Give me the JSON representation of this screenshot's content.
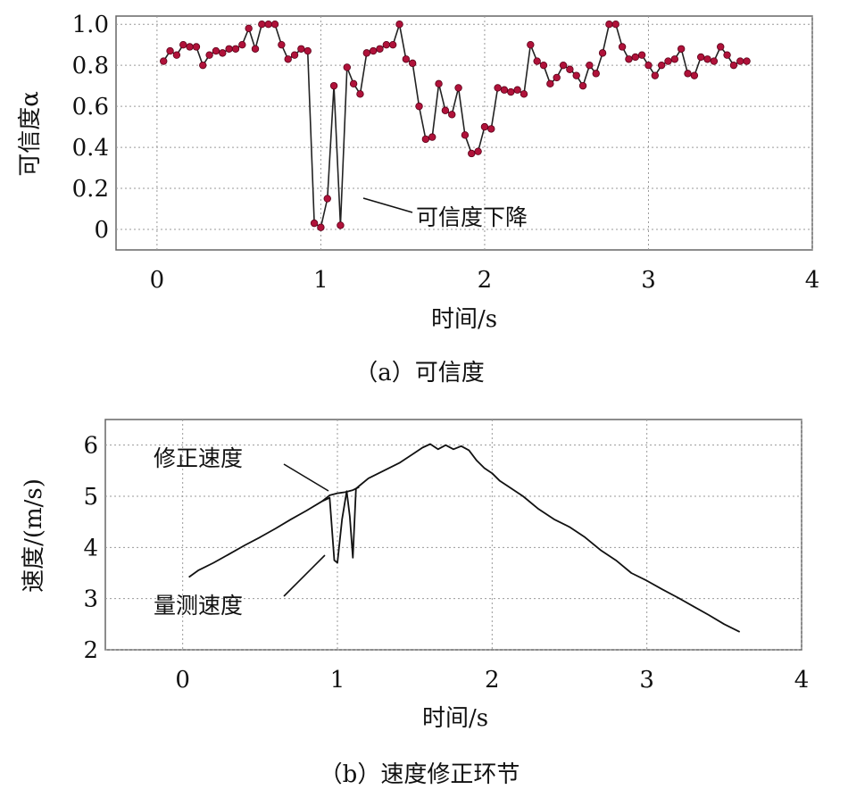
{
  "chart_data": [
    {
      "type": "line",
      "caption": "（a）可信度",
      "xlabel": "时间/s",
      "ylabel": "可信度α",
      "xlim": [
        -0.25,
        4
      ],
      "ylim": [
        -0.1,
        1.04
      ],
      "xticks": [
        "0",
        "1",
        "2",
        "3",
        "4"
      ],
      "yticks": [
        "0",
        "0.2",
        "0.4",
        "0.6",
        "0.8",
        "1.0"
      ],
      "grid": true,
      "markers": true,
      "series": [
        {
          "color": "#222222",
          "marker_color": "#b0123a",
          "x": [
            0.04,
            0.08,
            0.12,
            0.16,
            0.2,
            0.24,
            0.28,
            0.32,
            0.36,
            0.4,
            0.44,
            0.48,
            0.52,
            0.56,
            0.6,
            0.64,
            0.68,
            0.72,
            0.76,
            0.8,
            0.84,
            0.88,
            0.92,
            0.96,
            1.0,
            1.04,
            1.08,
            1.12,
            1.16,
            1.2,
            1.24,
            1.28,
            1.32,
            1.36,
            1.4,
            1.44,
            1.48,
            1.52,
            1.56,
            1.6,
            1.64,
            1.68,
            1.72,
            1.76,
            1.8,
            1.84,
            1.88,
            1.92,
            1.96,
            2.0,
            2.04,
            2.08,
            2.12,
            2.16,
            2.2,
            2.24,
            2.28,
            2.32,
            2.36,
            2.4,
            2.44,
            2.48,
            2.52,
            2.56,
            2.6,
            2.64,
            2.68,
            2.72,
            2.76,
            2.8,
            2.84,
            2.88,
            2.92,
            2.96,
            3.0,
            3.04,
            3.08,
            3.12,
            3.16,
            3.2,
            3.24,
            3.28,
            3.32,
            3.36,
            3.4,
            3.44,
            3.48,
            3.52,
            3.56,
            3.6
          ],
          "y": [
            0.82,
            0.87,
            0.85,
            0.9,
            0.89,
            0.89,
            0.8,
            0.85,
            0.87,
            0.86,
            0.88,
            0.88,
            0.9,
            0.98,
            0.88,
            1.0,
            1.0,
            1.0,
            0.9,
            0.83,
            0.85,
            0.88,
            0.87,
            0.03,
            0.01,
            0.15,
            0.7,
            0.02,
            0.79,
            0.71,
            0.66,
            0.86,
            0.87,
            0.88,
            0.9,
            0.9,
            1.0,
            0.83,
            0.81,
            0.6,
            0.44,
            0.45,
            0.71,
            0.58,
            0.56,
            0.69,
            0.46,
            0.37,
            0.38,
            0.5,
            0.49,
            0.69,
            0.68,
            0.67,
            0.68,
            0.66,
            0.9,
            0.82,
            0.8,
            0.71,
            0.74,
            0.8,
            0.78,
            0.75,
            0.7,
            0.8,
            0.76,
            0.86,
            1.0,
            1.0,
            0.89,
            0.83,
            0.84,
            0.85,
            0.8,
            0.75,
            0.8,
            0.82,
            0.83,
            0.88,
            0.76,
            0.75,
            0.84,
            0.83,
            0.82,
            0.89,
            0.85,
            0.8,
            0.82,
            0.82
          ]
        }
      ],
      "annotations": [
        {
          "text": "可信度下降",
          "x": 1.12,
          "y": 0.16
        }
      ]
    },
    {
      "type": "line",
      "caption": "（b）速度修正环节",
      "xlabel": "时间/s",
      "ylabel": "速度/(m/s)",
      "xlim": [
        -0.5,
        4
      ],
      "ylim": [
        2,
        6.5
      ],
      "xticks": [
        "0",
        "1",
        "2",
        "3",
        "4"
      ],
      "yticks": [
        "2",
        "3",
        "4",
        "5",
        "6"
      ],
      "grid": true,
      "series": [
        {
          "name": "量测速度",
          "color": "#111111",
          "x": [
            0.04,
            0.1,
            0.2,
            0.3,
            0.4,
            0.5,
            0.6,
            0.7,
            0.8,
            0.9,
            0.95,
            0.98,
            1.0,
            1.03,
            1.06,
            1.08,
            1.1,
            1.12,
            1.14,
            1.2,
            1.3,
            1.4,
            1.5,
            1.55,
            1.6,
            1.65,
            1.7,
            1.75,
            1.8,
            1.85,
            1.9,
            1.95,
            2.0,
            2.05,
            2.1,
            2.2,
            2.3,
            2.4,
            2.5,
            2.6,
            2.7,
            2.8,
            2.9,
            3.0,
            3.1,
            3.2,
            3.3,
            3.4,
            3.5,
            3.6
          ],
          "y": [
            3.42,
            3.55,
            3.7,
            3.87,
            4.04,
            4.2,
            4.37,
            4.55,
            4.72,
            4.9,
            4.97,
            3.75,
            3.7,
            4.55,
            5.1,
            4.6,
            3.8,
            5.15,
            5.2,
            5.35,
            5.5,
            5.65,
            5.85,
            5.95,
            6.02,
            5.92,
            6.0,
            5.92,
            5.98,
            5.9,
            5.7,
            5.55,
            5.45,
            5.3,
            5.2,
            5.0,
            4.75,
            4.55,
            4.4,
            4.2,
            3.95,
            3.75,
            3.5,
            3.35,
            3.18,
            3.02,
            2.85,
            2.68,
            2.5,
            2.35
          ]
        },
        {
          "name": "修正速度",
          "color": "#111111",
          "x": [
            0.9,
            0.95,
            1.0,
            1.05,
            1.1,
            1.14
          ],
          "y": [
            4.9,
            5.02,
            5.06,
            5.08,
            5.12,
            5.18
          ]
        }
      ],
      "annotations": [
        {
          "text": "修正速度",
          "x": 0.93,
          "y": 5.0
        },
        {
          "text": "量测速度",
          "x": 0.95,
          "y": 3.8
        }
      ]
    }
  ]
}
